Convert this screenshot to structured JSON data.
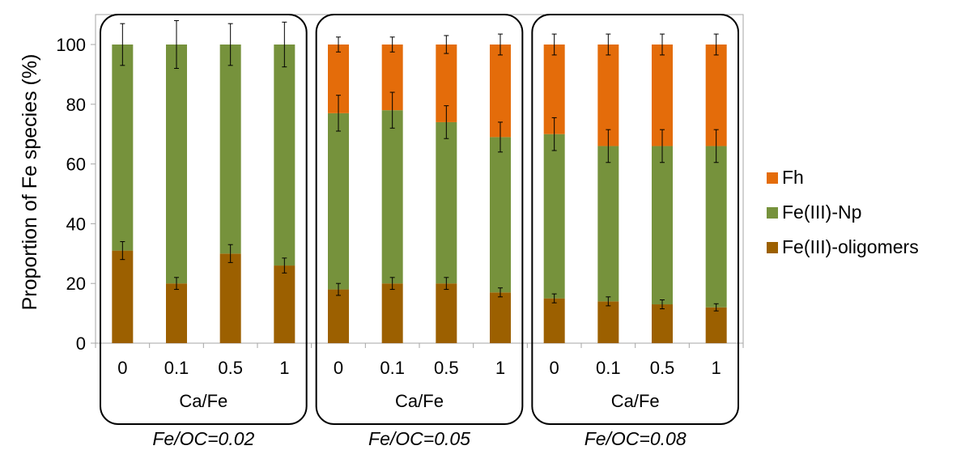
{
  "chart_data": {
    "type": "bar",
    "stacked": true,
    "ylabel": "Proportion of Fe species (%)",
    "ylim": [
      0,
      100
    ],
    "yticks": [
      0,
      20,
      40,
      60,
      80,
      100
    ],
    "x_group_axis_label": "Ca/Fe",
    "categories": [
      "0",
      "0.1",
      "0.5",
      "1",
      "0",
      "0.1",
      "0.5",
      "1",
      "0",
      "0.1",
      "0.5",
      "1"
    ],
    "groups": [
      {
        "label": "Fe/OC=0.02",
        "indices": [
          0,
          1,
          2,
          3
        ]
      },
      {
        "label": "Fe/OC=0.05",
        "indices": [
          4,
          5,
          6,
          7
        ]
      },
      {
        "label": "Fe/OC=0.08",
        "indices": [
          8,
          9,
          10,
          11
        ]
      }
    ],
    "series": [
      {
        "name": "Fe(III)-oligomers",
        "color": "#9C6000",
        "values": [
          31,
          20,
          30,
          26,
          18,
          20,
          20,
          17,
          15,
          14,
          13,
          12
        ],
        "errors": [
          3,
          2,
          3,
          2.5,
          2,
          2,
          2,
          1.5,
          1.5,
          1.5,
          1.5,
          1.2
        ]
      },
      {
        "name": "Fe(III)-Np",
        "color": "#76923C",
        "values": [
          69,
          80,
          70,
          74,
          59,
          58,
          54,
          52,
          55,
          52,
          53,
          54
        ],
        "errors": [
          0,
          0,
          0,
          0,
          6,
          6,
          5.5,
          5,
          5.5,
          5.5,
          5.5,
          5.5
        ]
      },
      {
        "name": "Fh",
        "color": "#E46C0A",
        "values": [
          0,
          0,
          0,
          0,
          23,
          22,
          26,
          31,
          30,
          34,
          34,
          34
        ],
        "errors": [
          7,
          8,
          7,
          7.5,
          2.5,
          2.5,
          3,
          3.5,
          3.5,
          3.5,
          3.5,
          3.5
        ]
      }
    ],
    "legend_position": "right",
    "grid": false
  }
}
